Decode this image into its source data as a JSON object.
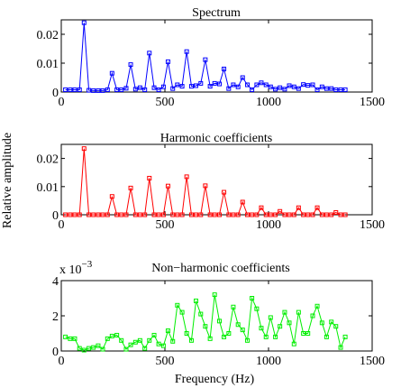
{
  "figure": {
    "ylabel": "Relative amplitude",
    "xlabel": "Frequency (Hz)"
  },
  "chart_data": [
    {
      "type": "line",
      "title": "Spectrum",
      "color": "#0000ff",
      "marker": "square",
      "xlim": [
        0,
        1500
      ],
      "ylim": [
        0,
        0.025
      ],
      "xticks": [
        0,
        500,
        1000,
        1500
      ],
      "xtick_labels": [
        "0",
        "500",
        "1000",
        "1500"
      ],
      "yticks": [
        0,
        0.01,
        0.02
      ],
      "ytick_labels": [
        "0",
        "0.01",
        "0.02"
      ],
      "multiplier_label": "",
      "x": [
        20,
        43,
        65,
        88,
        110,
        133,
        155,
        178,
        200,
        223,
        245,
        268,
        290,
        313,
        335,
        358,
        380,
        403,
        425,
        448,
        470,
        493,
        515,
        538,
        560,
        583,
        605,
        628,
        650,
        673,
        695,
        718,
        740,
        763,
        785,
        808,
        830,
        853,
        875,
        898,
        920,
        943,
        965,
        988,
        1010,
        1033,
        1055,
        1078,
        1100,
        1123,
        1145,
        1168,
        1190,
        1213,
        1235,
        1258,
        1280,
        1303,
        1325,
        1348,
        1370
      ],
      "y": [
        0.0008,
        0.0008,
        0.0008,
        0.0008,
        0.024,
        0.0006,
        0.0005,
        0.0005,
        0.0005,
        0.0008,
        0.0065,
        0.0008,
        0.0008,
        0.0013,
        0.0095,
        0.001,
        0.0015,
        0.0008,
        0.0135,
        0.0015,
        0.0008,
        0.0018,
        0.0105,
        0.0012,
        0.0025,
        0.002,
        0.014,
        0.002,
        0.0022,
        0.003,
        0.0112,
        0.002,
        0.003,
        0.0028,
        0.008,
        0.0012,
        0.0025,
        0.0018,
        0.005,
        0.0025,
        0.0008,
        0.0025,
        0.0032,
        0.0025,
        0.0018,
        0.001,
        0.0015,
        0.001,
        0.0022,
        0.0018,
        0.0012,
        0.0026,
        0.0023,
        0.0025,
        0.0008,
        0.0018,
        0.0012,
        0.0012,
        0.0008,
        0.0008,
        0.0008
      ]
    },
    {
      "type": "line",
      "title": "Harmonic coefficients",
      "color": "#ff0000",
      "marker": "square",
      "xlim": [
        0,
        1500
      ],
      "ylim": [
        0,
        0.025
      ],
      "xticks": [
        0,
        500,
        1000,
        1500
      ],
      "xtick_labels": [
        "0",
        "500",
        "1000",
        "1500"
      ],
      "yticks": [
        0,
        0.01,
        0.02
      ],
      "ytick_labels": [
        "0",
        "0.01",
        "0.02"
      ],
      "multiplier_label": "",
      "x": [
        20,
        43,
        65,
        88,
        110,
        133,
        155,
        178,
        200,
        223,
        245,
        268,
        290,
        313,
        335,
        358,
        380,
        403,
        425,
        448,
        470,
        493,
        515,
        538,
        560,
        583,
        605,
        628,
        650,
        673,
        695,
        718,
        740,
        763,
        785,
        808,
        830,
        853,
        875,
        898,
        920,
        943,
        965,
        988,
        1010,
        1033,
        1055,
        1078,
        1100,
        1123,
        1145,
        1168,
        1190,
        1213,
        1235,
        1258,
        1280,
        1303,
        1325,
        1348,
        1370
      ],
      "y": [
        0,
        0,
        0,
        0,
        0.0235,
        0,
        0,
        0,
        0,
        0,
        0.0065,
        0,
        0,
        0,
        0.0095,
        0,
        0,
        0,
        0.013,
        0,
        0,
        0,
        0.0102,
        0,
        0,
        0,
        0.0135,
        0,
        0,
        0,
        0.0103,
        0,
        0,
        0,
        0.008,
        0,
        0,
        0,
        0.0045,
        0,
        0,
        0,
        0.0025,
        0,
        0,
        0,
        0.0012,
        0,
        0,
        0,
        0.0025,
        0,
        0,
        0,
        0.0025,
        0,
        0,
        0,
        0.0008,
        0,
        0
      ]
    },
    {
      "type": "line",
      "title": "Non−harmonic coefficients",
      "color": "#00ee00",
      "marker": "square",
      "xlim": [
        0,
        1500
      ],
      "ylim": [
        0,
        4
      ],
      "xticks": [
        0,
        500,
        1000,
        1500
      ],
      "xtick_labels": [
        "0",
        "500",
        "1000",
        "1500"
      ],
      "yticks": [
        0,
        2,
        4
      ],
      "ytick_labels": [
        "0",
        "2",
        "4"
      ],
      "multiplier_label": "x 10",
      "multiplier_exponent": "−3",
      "x": [
        20,
        43,
        65,
        88,
        110,
        133,
        155,
        178,
        200,
        223,
        245,
        268,
        290,
        313,
        335,
        358,
        380,
        403,
        425,
        448,
        470,
        493,
        515,
        538,
        560,
        583,
        605,
        628,
        650,
        673,
        695,
        718,
        740,
        763,
        785,
        808,
        830,
        853,
        875,
        898,
        920,
        943,
        965,
        988,
        1010,
        1033,
        1055,
        1078,
        1100,
        1123,
        1145,
        1168,
        1190,
        1213,
        1235,
        1258,
        1280,
        1303,
        1325,
        1348,
        1370
      ],
      "y": [
        0.8,
        0.7,
        0.7,
        0.15,
        0.05,
        0.15,
        0.2,
        0.3,
        0.1,
        0.7,
        0.85,
        0.9,
        0.6,
        0.1,
        0.35,
        0.5,
        0.6,
        0.15,
        0.6,
        0.9,
        0.4,
        0.3,
        1.15,
        0.55,
        2.6,
        2.2,
        1.0,
        0.6,
        2.85,
        2.1,
        1.4,
        0.7,
        3.2,
        1.7,
        0.8,
        1.0,
        2.5,
        1.5,
        1.2,
        0.6,
        3.0,
        2.4,
        1.3,
        0.8,
        1.9,
        0.8,
        1.4,
        2.2,
        1.6,
        0.4,
        2.2,
        1.0,
        1.0,
        2.0,
        2.55,
        1.6,
        0.8,
        1.65,
        1.4,
        0.2,
        0.8
      ]
    }
  ]
}
